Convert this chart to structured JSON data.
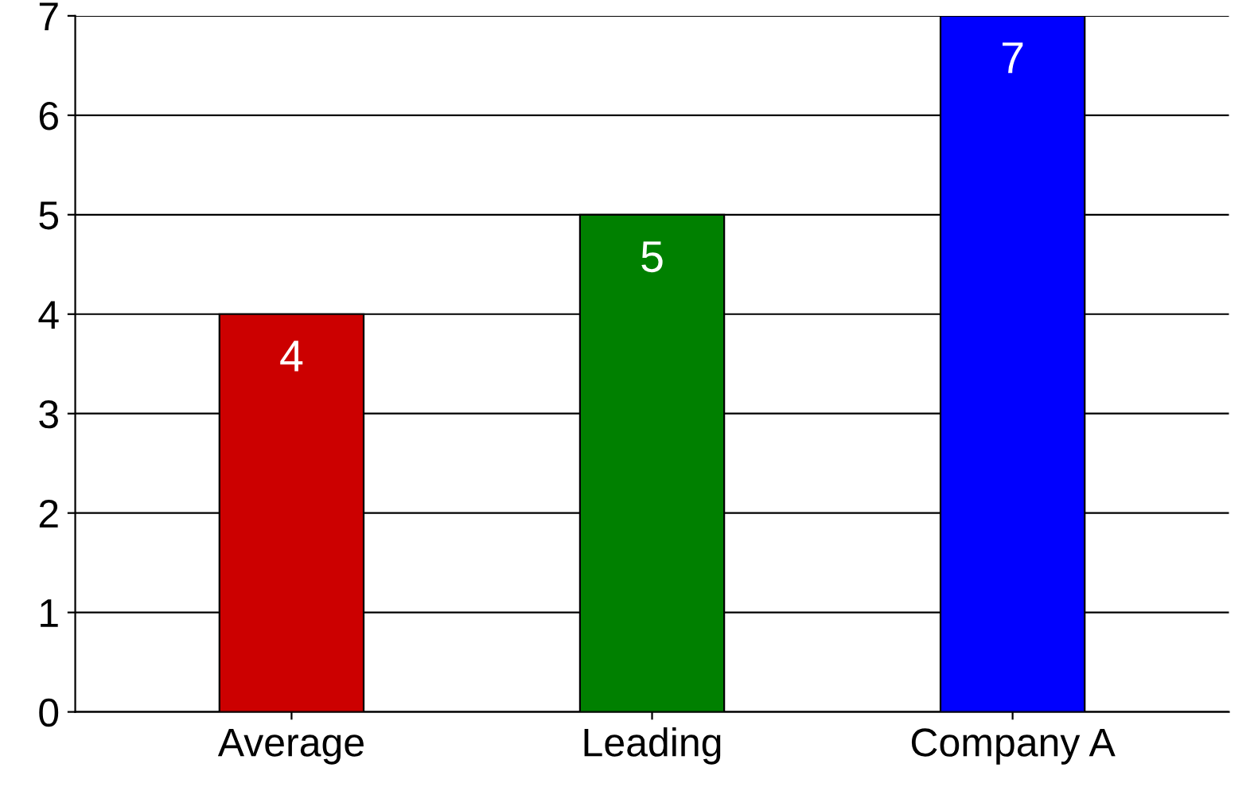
{
  "chart_data": {
    "type": "bar",
    "categories": [
      "Average",
      "Leading",
      "Company A"
    ],
    "values": [
      4,
      5,
      7
    ],
    "colors": [
      "#cc0000",
      "#008000",
      "#0000ff"
    ],
    "ylim": [
      0,
      7
    ],
    "yticks": [
      0,
      1,
      2,
      3,
      4,
      5,
      6,
      7
    ],
    "grid": "y",
    "data_labels": true
  }
}
